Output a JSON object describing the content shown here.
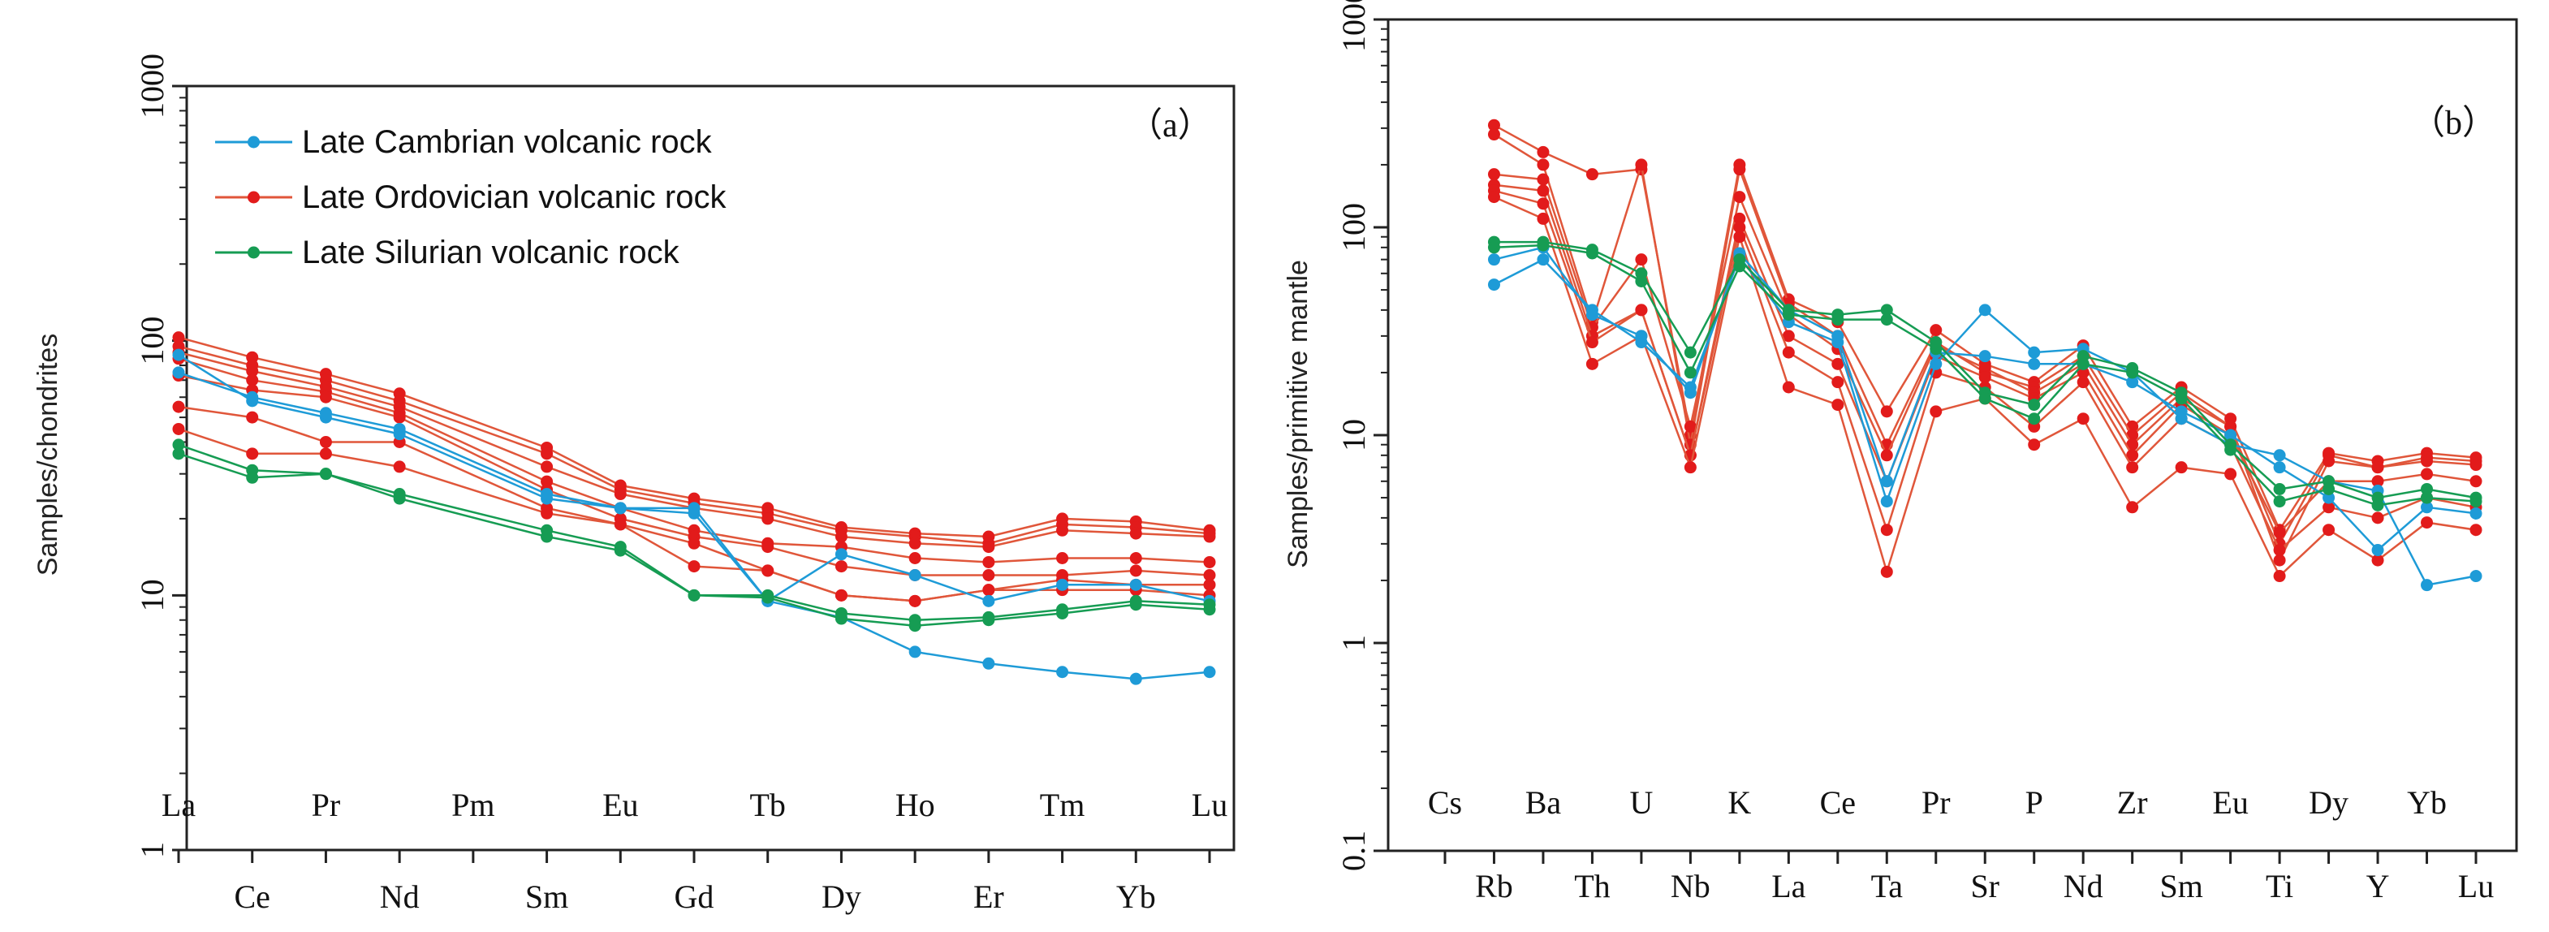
{
  "colors": {
    "cambrian": "#1e9bd7",
    "ordovician": "#e21b1b",
    "ordovician_line": "#e0563a",
    "silurian": "#169c53",
    "axis": "#222222"
  },
  "legend": {
    "entries": [
      {
        "name": "Late Cambrian volcanic rock",
        "color": "#1e9bd7"
      },
      {
        "name": "Late Ordovician volcanic rock",
        "color": "#e0563a"
      },
      {
        "name": "Late Silurian volcanic rock",
        "color": "#169c53"
      }
    ],
    "placement": "top-left"
  },
  "chart_data": [
    {
      "type": "line",
      "panel": "a",
      "panel_label": "（a）",
      "ylabel": "Samples/chondrites",
      "yscale": "log",
      "ylim": [
        1,
        1000
      ],
      "ytick_labels": [
        "1",
        "10",
        "100",
        "1000"
      ],
      "categories": [
        "La",
        "Ce",
        "Pr",
        "Nd",
        "Pm",
        "Sm",
        "Eu",
        "Gd",
        "Tb",
        "Dy",
        "Ho",
        "Er",
        "Tm",
        "Yb",
        "Lu"
      ],
      "top_labels": [
        "La",
        "Pr",
        "Pm",
        "Eu",
        "Tb",
        "Ho",
        "Tm",
        "Lu"
      ],
      "bottom_labels": [
        "Ce",
        "Nd",
        "Sm",
        "Gd",
        "Dy",
        "Er",
        "Yb"
      ],
      "series": [
        {
          "group": "cambrian",
          "values": [
            88,
            58,
            50,
            43,
            null,
            24,
            22,
            21,
            9.5,
            8.2,
            6,
            5.4,
            5,
            4.7,
            5
          ]
        },
        {
          "group": "cambrian",
          "values": [
            75,
            60,
            52,
            45,
            null,
            25,
            22,
            22,
            9.5,
            14.5,
            12,
            9.5,
            11,
            11,
            9.5
          ]
        },
        {
          "group": "ordovician",
          "values": [
            103,
            86,
            74,
            62,
            null,
            38,
            27,
            24,
            22,
            18.5,
            17.5,
            17,
            20,
            19.5,
            18
          ]
        },
        {
          "group": "ordovician",
          "values": [
            95,
            80,
            70,
            58,
            null,
            36,
            26,
            23,
            21,
            18,
            17,
            16,
            19,
            18.5,
            17.5
          ]
        },
        {
          "group": "ordovician",
          "values": [
            90,
            76,
            66,
            55,
            null,
            32,
            25,
            22,
            20,
            17,
            16,
            15.5,
            18,
            17.5,
            17
          ]
        },
        {
          "group": "ordovician",
          "values": [
            85,
            70,
            63,
            52,
            null,
            28,
            22,
            18,
            16,
            15.5,
            14,
            13.5,
            14,
            14,
            13.5
          ]
        },
        {
          "group": "ordovician",
          "values": [
            73,
            64,
            60,
            50,
            null,
            26,
            20,
            17,
            15.5,
            13,
            12,
            12,
            12,
            12.5,
            12
          ]
        },
        {
          "group": "ordovician",
          "values": [
            55,
            50,
            40,
            40,
            null,
            22,
            19,
            16,
            12.5,
            10,
            9.5,
            10.5,
            11.5,
            11,
            11
          ]
        },
        {
          "group": "ordovician",
          "values": [
            45,
            36,
            36,
            32,
            null,
            21,
            19,
            13,
            12.5,
            10,
            9.5,
            10.5,
            10.5,
            10.5,
            10
          ]
        },
        {
          "group": "silurian",
          "values": [
            39,
            31,
            30,
            25,
            null,
            18,
            15.5,
            10,
            10,
            8.5,
            8,
            8.2,
            8.8,
            9.5,
            9.2
          ]
        },
        {
          "group": "silurian",
          "values": [
            36,
            29,
            30,
            24,
            null,
            17,
            15,
            10,
            9.8,
            8.1,
            7.6,
            8,
            8.5,
            9.2,
            8.8
          ]
        }
      ]
    },
    {
      "type": "line",
      "panel": "b",
      "panel_label": "（b）",
      "ylabel": "Samples/primitive mantle",
      "yscale": "log",
      "ylim": [
        0.1,
        1000
      ],
      "ytick_labels": [
        "0.1",
        "1",
        "10",
        "100",
        "1000"
      ],
      "categories": [
        "Cs",
        "Rb",
        "Ba",
        "Th",
        "U",
        "Nb",
        "K",
        "La",
        "Ce",
        "Ta",
        "Pr",
        "Sr",
        "P",
        "Nd",
        "Zr",
        "Sm",
        "Eu",
        "Ti",
        "Dy",
        "Y",
        "Yb",
        "Lu"
      ],
      "top_labels": [
        "Cs",
        "Ba",
        "U",
        "K",
        "Ce",
        "Pr",
        "P",
        "Zr",
        "Eu",
        "Dy",
        "Yb"
      ],
      "bottom_labels": [
        "Rb",
        "Th",
        "Nb",
        "La",
        "Ta",
        "Sr",
        "Nd",
        "Sm",
        "Ti",
        "Y",
        "Lu"
      ],
      "series": [
        {
          "group": "cambrian",
          "values": [
            null,
            53,
            70,
            40,
            28,
            17,
            72,
            35,
            28,
            4.8,
            22,
            40,
            25,
            26,
            20,
            12,
            9,
            8,
            6,
            5.4,
            1.9,
            2.1
          ]
        },
        {
          "group": "cambrian",
          "values": [
            null,
            70,
            80,
            38,
            30,
            16,
            75,
            40,
            30,
            6,
            25,
            24,
            22,
            22,
            18,
            13,
            10,
            7,
            5,
            2.8,
            4.5,
            4.2
          ]
        },
        {
          "group": "ordovician",
          "values": [
            null,
            310,
            230,
            180,
            190,
            10,
            200,
            45,
            35,
            13,
            32,
            22,
            18,
            27,
            11,
            17,
            12,
            3.5,
            8.2,
            7.5,
            8.2,
            7.8
          ]
        },
        {
          "group": "ordovician",
          "values": [
            null,
            280,
            200,
            35,
            200,
            9,
            190,
            43,
            30,
            9,
            28,
            20,
            17,
            24,
            10,
            16,
            11,
            3,
            8,
            7,
            7.8,
            7.5
          ]
        },
        {
          "group": "ordovician",
          "values": [
            null,
            180,
            170,
            33,
            70,
            11,
            140,
            38,
            26,
            8,
            27,
            21,
            16,
            22,
            9,
            15,
            11,
            2.5,
            7.5,
            7,
            7.5,
            7.2
          ]
        },
        {
          "group": "ordovician",
          "values": [
            null,
            160,
            150,
            30,
            40,
            8,
            110,
            30,
            22,
            6,
            24,
            19,
            15,
            20,
            8,
            14,
            10,
            3.4,
            6,
            6,
            6.5,
            6
          ]
        },
        {
          "group": "ordovician",
          "values": [
            null,
            150,
            130,
            28,
            40,
            8,
            100,
            25,
            18,
            3.5,
            20,
            17,
            11,
            18,
            7,
            12,
            9,
            2.8,
            4.5,
            4,
            5,
            4.5
          ]
        },
        {
          "group": "ordovician",
          "values": [
            null,
            140,
            110,
            22,
            30,
            7,
            90,
            17,
            14,
            2.2,
            13,
            15,
            9,
            12,
            4.5,
            7,
            6.5,
            2.1,
            3.5,
            2.5,
            3.8,
            3.5
          ]
        },
        {
          "group": "silurian",
          "values": [
            null,
            85,
            85,
            78,
            60,
            25,
            70,
            40,
            38,
            40,
            28,
            16,
            14,
            24,
            21,
            16,
            9,
            5.5,
            6,
            5,
            5.5,
            5
          ]
        },
        {
          "group": "silurian",
          "values": [
            null,
            80,
            82,
            75,
            55,
            20,
            65,
            38,
            36,
            36,
            26,
            15,
            12,
            22,
            20,
            15,
            8.5,
            4.8,
            5.5,
            4.6,
            5,
            4.8
          ]
        }
      ]
    }
  ]
}
